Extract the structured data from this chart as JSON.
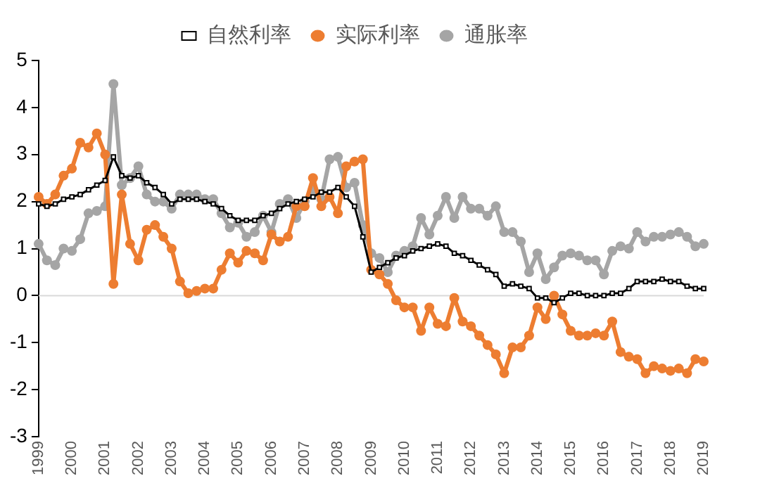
{
  "chart_data": {
    "type": "line",
    "categories": [
      "1999",
      null,
      null,
      null,
      "2000",
      null,
      null,
      null,
      "2001",
      null,
      null,
      null,
      "2002",
      null,
      null,
      null,
      "2003",
      null,
      null,
      null,
      "2004",
      null,
      null,
      null,
      "2005",
      null,
      null,
      null,
      "2006",
      null,
      null,
      null,
      "2007",
      null,
      null,
      null,
      "2008",
      null,
      null,
      null,
      "2009",
      null,
      null,
      null,
      "2010",
      null,
      null,
      null,
      "2011",
      null,
      null,
      null,
      "2012",
      null,
      null,
      null,
      "2013",
      null,
      null,
      null,
      "2014",
      null,
      null,
      null,
      "2015",
      null,
      null,
      null,
      "2016",
      null,
      null,
      null,
      "2017",
      null,
      null,
      null,
      "2018",
      null,
      null,
      null,
      "2019"
    ],
    "series": [
      {
        "name": "自然利率",
        "color": "#000000",
        "marker": "square",
        "values": [
          1.95,
          1.9,
          1.95,
          2.05,
          2.1,
          2.15,
          2.25,
          2.35,
          2.45,
          2.95,
          2.55,
          2.5,
          2.55,
          2.4,
          2.3,
          2.15,
          1.95,
          2.05,
          2.05,
          2.05,
          2.0,
          1.95,
          1.85,
          1.7,
          1.6,
          1.6,
          1.6,
          1.7,
          1.75,
          1.85,
          1.95,
          2.0,
          2.05,
          2.1,
          2.2,
          2.2,
          2.3,
          2.1,
          1.9,
          1.25,
          0.5,
          0.6,
          0.7,
          0.8,
          0.85,
          0.95,
          1.0,
          1.05,
          1.1,
          1.05,
          0.9,
          0.85,
          0.75,
          0.65,
          0.55,
          0.45,
          0.2,
          0.25,
          0.2,
          0.15,
          -0.05,
          -0.05,
          -0.15,
          -0.05,
          0.05,
          0.05,
          0.0,
          0.0,
          0.0,
          0.05,
          0.05,
          0.15,
          0.3,
          0.3,
          0.3,
          0.35,
          0.3,
          0.3,
          0.2,
          0.15,
          0.15
        ]
      },
      {
        "name": "实际利率",
        "color": "#ed7d31",
        "marker": "circle",
        "values": [
          2.1,
          1.95,
          2.15,
          2.55,
          2.7,
          3.25,
          3.15,
          3.45,
          3.0,
          0.25,
          2.15,
          1.1,
          0.75,
          1.4,
          1.5,
          1.25,
          1.0,
          0.3,
          0.05,
          0.1,
          0.15,
          0.15,
          0.55,
          0.9,
          0.7,
          0.95,
          0.9,
          0.75,
          1.3,
          1.15,
          1.25,
          1.9,
          1.9,
          2.5,
          1.9,
          2.1,
          1.75,
          2.75,
          2.85,
          2.9,
          0.55,
          0.45,
          0.25,
          -0.1,
          -0.25,
          -0.25,
          -0.75,
          -0.25,
          -0.6,
          -0.65,
          -0.05,
          -0.55,
          -0.65,
          -0.85,
          -1.05,
          -1.25,
          -1.65,
          -1.1,
          -1.1,
          -0.85,
          -0.25,
          -0.5,
          0.0,
          -0.4,
          -0.75,
          -0.85,
          -0.85,
          -0.8,
          -0.85,
          -0.55,
          -1.2,
          -1.3,
          -1.35,
          -1.65,
          -1.5,
          -1.55,
          -1.6,
          -1.55,
          -1.65,
          -1.35,
          -1.4
        ]
      },
      {
        "name": "通胀率",
        "color": "#a5a5a5",
        "marker": "circle",
        "values": [
          1.1,
          0.75,
          0.65,
          1.0,
          0.95,
          1.2,
          1.75,
          1.8,
          1.9,
          4.5,
          2.35,
          2.5,
          2.75,
          2.15,
          2.0,
          2.0,
          1.85,
          2.15,
          2.15,
          2.15,
          2.05,
          2.05,
          1.75,
          1.45,
          1.55,
          1.25,
          1.35,
          1.7,
          1.35,
          1.95,
          2.05,
          1.65,
          2.0,
          2.25,
          2.05,
          2.9,
          2.95,
          2.3,
          2.4,
          1.5,
          0.9,
          0.8,
          0.5,
          0.85,
          0.95,
          1.05,
          1.65,
          1.3,
          1.7,
          2.1,
          1.65,
          2.1,
          1.85,
          1.85,
          1.7,
          1.9,
          1.35,
          1.35,
          1.15,
          0.5,
          0.9,
          0.35,
          0.6,
          0.85,
          0.9,
          0.85,
          0.75,
          0.75,
          0.45,
          0.95,
          1.05,
          1.0,
          1.35,
          1.15,
          1.25,
          1.25,
          1.3,
          1.35,
          1.25,
          1.05,
          1.1
        ]
      }
    ],
    "ylim": [
      -3,
      5
    ],
    "yticks": [
      -3,
      -2,
      -1,
      0,
      1,
      2,
      3,
      4,
      5
    ],
    "ref_lines": [
      {
        "axis": "y",
        "value": 0,
        "color": "#d9d9d9"
      }
    ],
    "grid": false,
    "legend": "top"
  }
}
